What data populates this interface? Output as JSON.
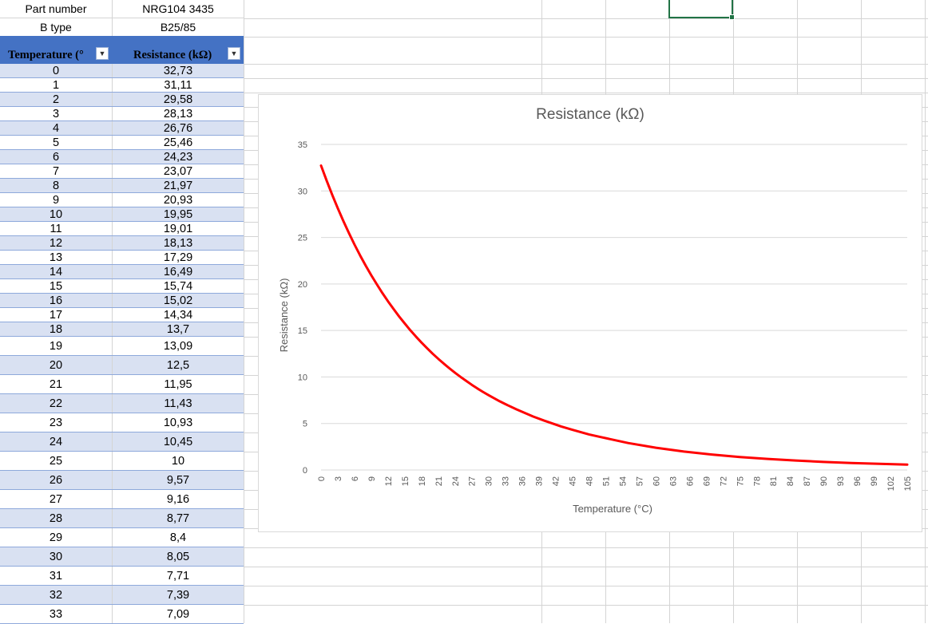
{
  "info": {
    "part_number_label": "Part number",
    "part_number_value": "NRG104 3435",
    "b_type_label": "B type",
    "b_type_value": "B25/85"
  },
  "table": {
    "headers": [
      "Temperature (°",
      "Resistance (kΩ)"
    ],
    "filter_icon": "dropdown-arrow",
    "rows": [
      [
        "0",
        "32,73"
      ],
      [
        "1",
        "31,11"
      ],
      [
        "2",
        "29,58"
      ],
      [
        "3",
        "28,13"
      ],
      [
        "4",
        "26,76"
      ],
      [
        "5",
        "25,46"
      ],
      [
        "6",
        "24,23"
      ],
      [
        "7",
        "23,07"
      ],
      [
        "8",
        "21,97"
      ],
      [
        "9",
        "20,93"
      ],
      [
        "10",
        "19,95"
      ],
      [
        "11",
        "19,01"
      ],
      [
        "12",
        "18,13"
      ],
      [
        "13",
        "17,29"
      ],
      [
        "14",
        "16,49"
      ],
      [
        "15",
        "15,74"
      ],
      [
        "16",
        "15,02"
      ],
      [
        "17",
        "14,34"
      ],
      [
        "18",
        "13,7"
      ],
      [
        "19",
        "13,09"
      ],
      [
        "20",
        "12,5"
      ],
      [
        "21",
        "11,95"
      ],
      [
        "22",
        "11,43"
      ],
      [
        "23",
        "10,93"
      ],
      [
        "24",
        "10,45"
      ],
      [
        "25",
        "10"
      ],
      [
        "26",
        "9,57"
      ],
      [
        "27",
        "9,16"
      ],
      [
        "28",
        "8,77"
      ],
      [
        "29",
        "8,4"
      ],
      [
        "30",
        "8,05"
      ],
      [
        "31",
        "7,71"
      ],
      [
        "32",
        "7,39"
      ],
      [
        "33",
        "7,09"
      ]
    ],
    "band_color": "#d9e1f2",
    "header_color": "#4472c4"
  },
  "chart_data": {
    "type": "line",
    "title": "Resistance (kΩ)",
    "xlabel": "Temperature (°C)",
    "ylabel": "Resistance (kΩ)",
    "ylim": [
      0,
      35
    ],
    "yticks": [
      0,
      5,
      10,
      15,
      20,
      25,
      30,
      35
    ],
    "xlim": [
      0,
      105
    ],
    "xticks": [
      "0",
      "3",
      "6",
      "9",
      "12",
      "15",
      "18",
      "21",
      "24",
      "27",
      "30",
      "33",
      "36",
      "39",
      "42",
      "45",
      "48",
      "51",
      "54",
      "57",
      "60",
      "63",
      "66",
      "69",
      "72",
      "75",
      "78",
      "81",
      "84",
      "87",
      "90",
      "93",
      "96",
      "99",
      "102",
      "105"
    ],
    "grid": true,
    "line_color": "#ff0000",
    "series": [
      {
        "x": [
          0,
          1,
          2,
          3,
          4,
          5,
          6,
          7,
          8,
          9,
          10,
          11,
          12,
          13,
          14,
          15,
          16,
          17,
          18,
          19,
          20,
          21,
          22,
          23,
          24,
          25,
          26,
          27,
          28,
          29,
          30,
          31,
          32,
          33,
          35,
          38,
          40,
          43,
          45,
          48,
          50,
          55,
          60,
          65,
          70,
          75,
          80,
          85,
          90,
          95,
          100,
          105
        ],
        "values": [
          32.73,
          31.11,
          29.58,
          28.13,
          26.76,
          25.46,
          24.23,
          23.07,
          21.97,
          20.93,
          19.95,
          19.01,
          18.13,
          17.29,
          16.49,
          15.74,
          15.02,
          14.34,
          13.7,
          13.09,
          12.5,
          11.95,
          11.43,
          10.93,
          10.45,
          10,
          9.57,
          9.16,
          8.77,
          8.4,
          8.05,
          7.71,
          7.39,
          7.09,
          6.52,
          5.75,
          5.3,
          4.68,
          4.32,
          3.83,
          3.55,
          2.9,
          2.39,
          1.98,
          1.66,
          1.4,
          1.19,
          1.02,
          0.87,
          0.75,
          0.66,
          0.58
        ]
      }
    ]
  }
}
